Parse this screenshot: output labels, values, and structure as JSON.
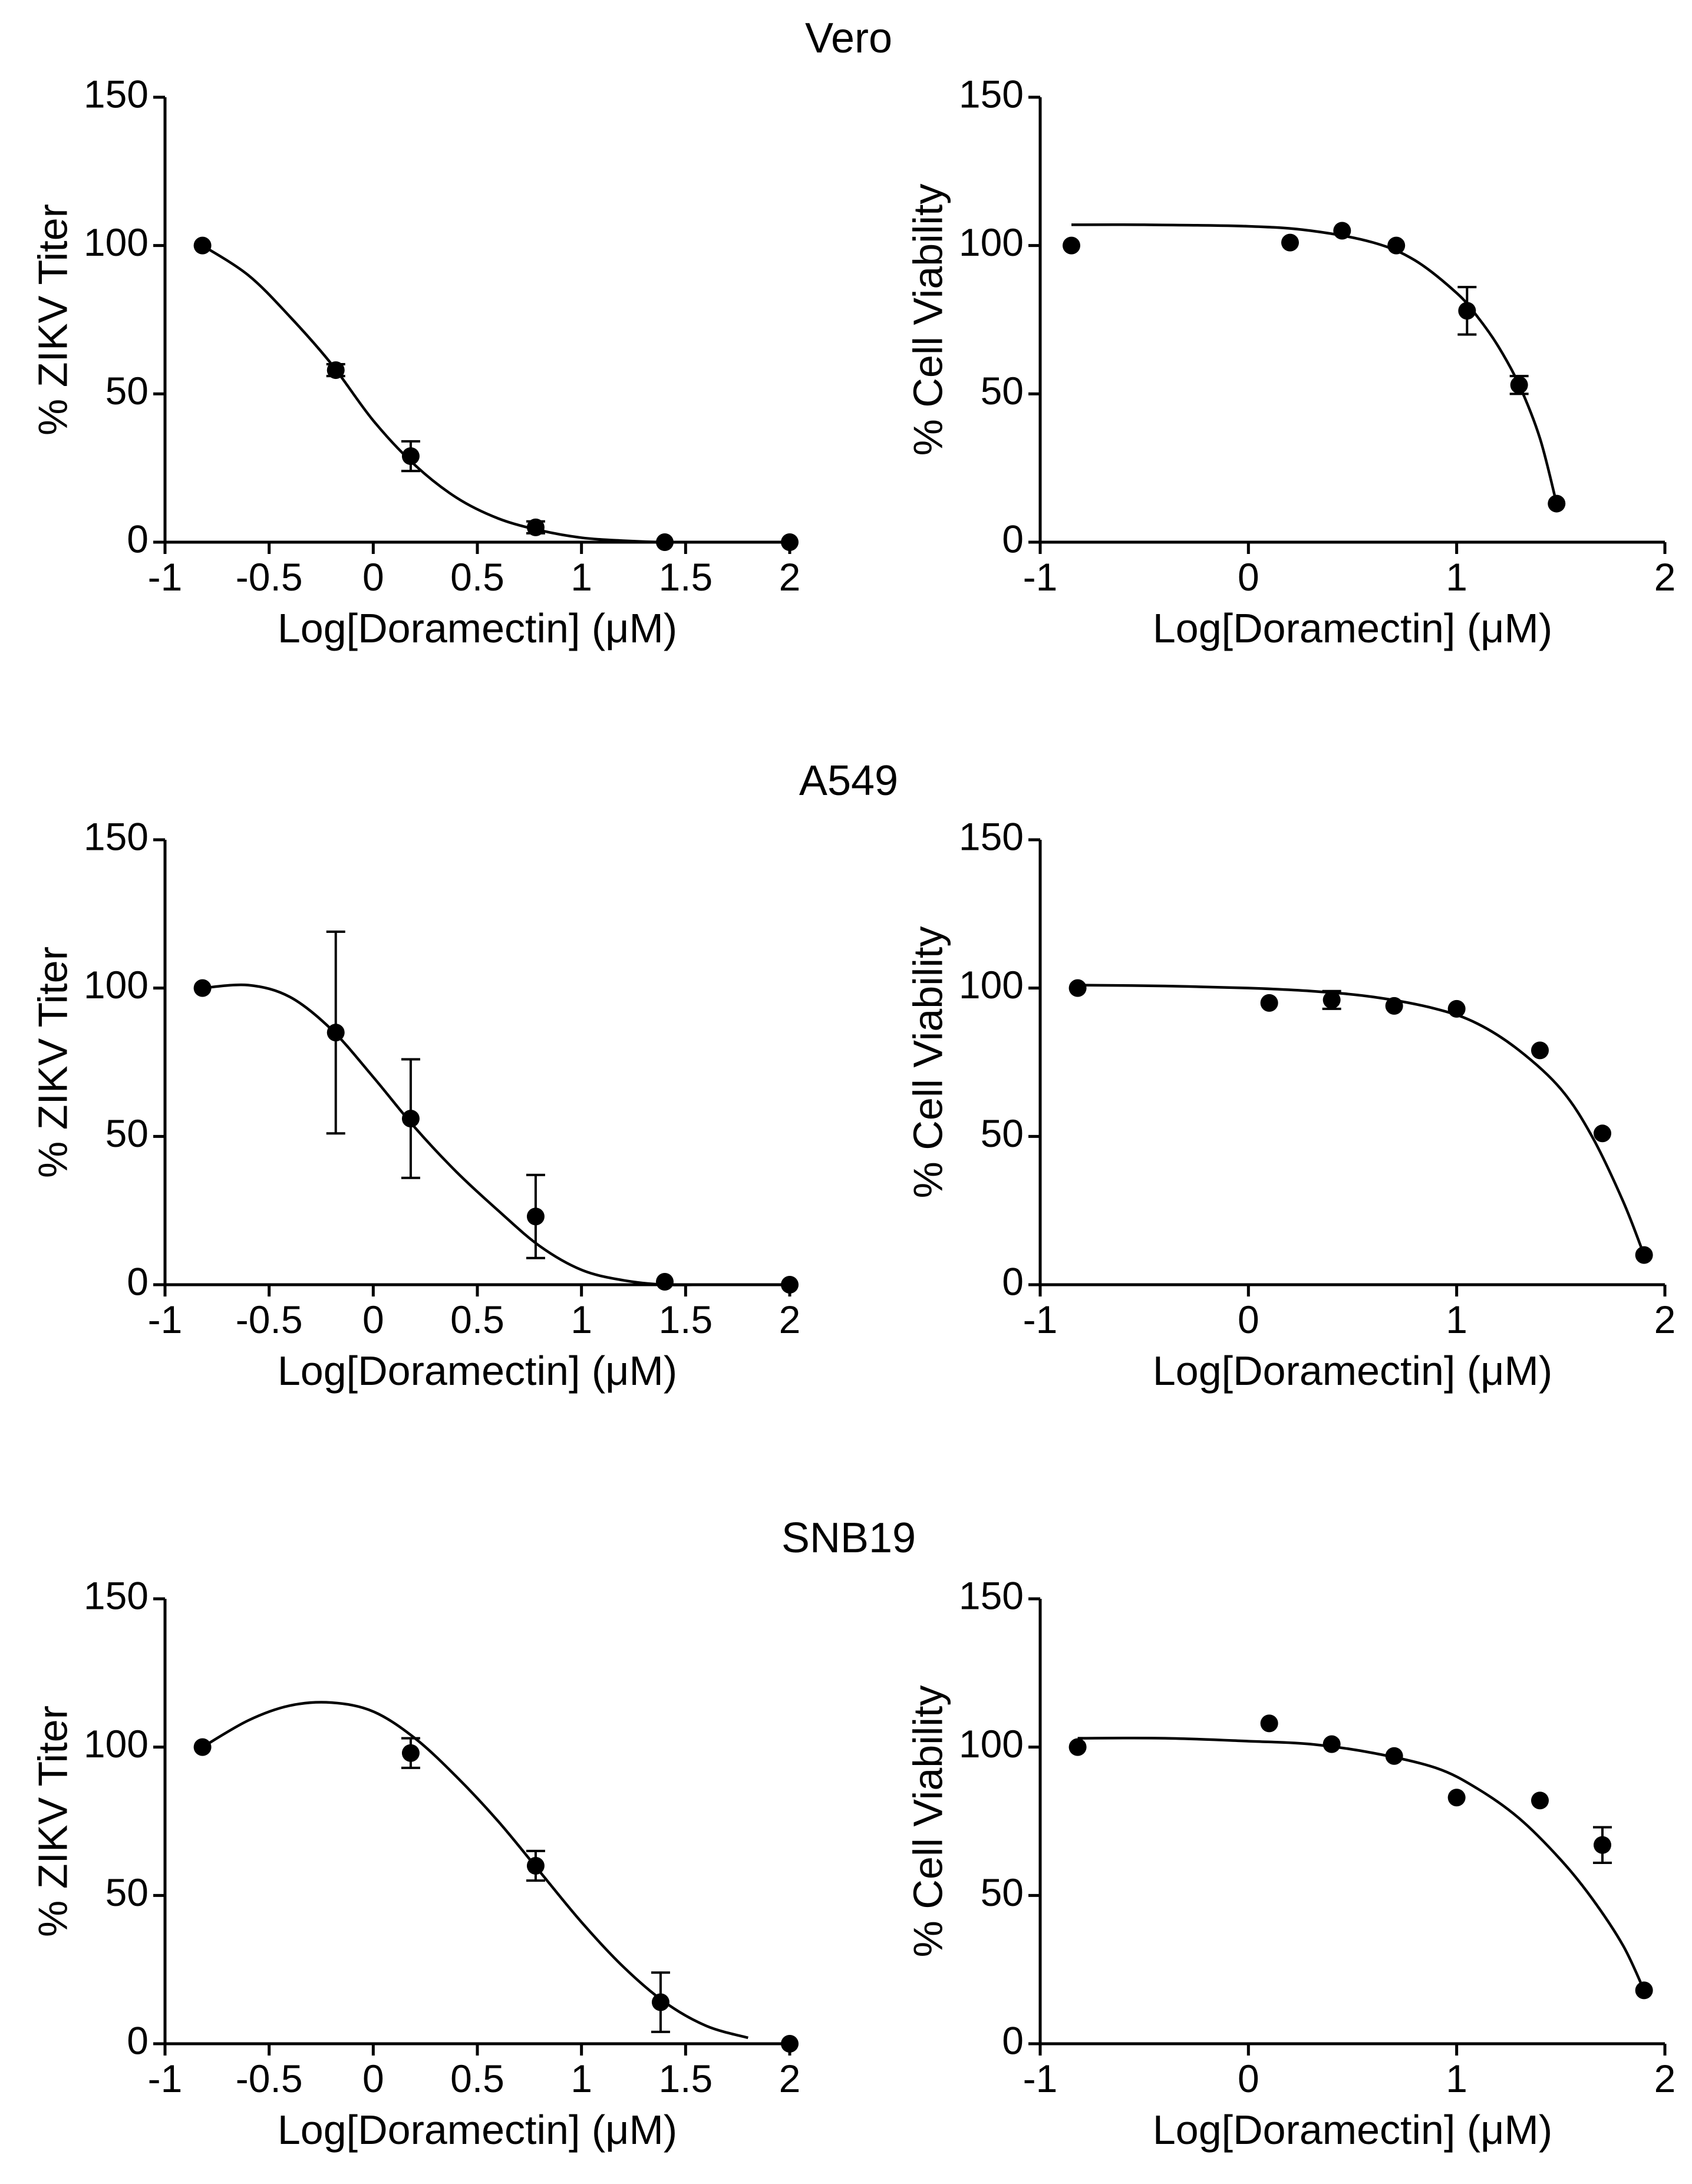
{
  "chart_data": [
    {
      "type": "scatter",
      "panel": "Vero ZIKV titer",
      "row_title": "Vero",
      "title": "",
      "xlabel": "Log[Doramectin] (μM)",
      "ylabel": "% ZIKV Titer",
      "xlim": [
        -1,
        2
      ],
      "ylim": [
        0,
        150
      ],
      "xticks": [
        -1,
        -0.5,
        0,
        0.5,
        1,
        1.5,
        2
      ],
      "xtick_labels": [
        "-1",
        "-0.5",
        "0",
        "0.5",
        "1",
        "1.5",
        "2"
      ],
      "yticks": [
        0,
        50,
        100,
        150
      ],
      "ytick_labels": [
        "0",
        "50",
        "100",
        "150"
      ],
      "points": [
        {
          "x": -0.82,
          "y": 100,
          "err": 0
        },
        {
          "x": -0.18,
          "y": 58,
          "err": 2
        },
        {
          "x": 0.18,
          "y": 29,
          "err": 5
        },
        {
          "x": 0.78,
          "y": 5,
          "err": 2
        },
        {
          "x": 1.4,
          "y": 0,
          "err": 0
        },
        {
          "x": 2.0,
          "y": 0,
          "err": 0
        }
      ],
      "curve": {
        "x": [
          -0.82,
          -0.6,
          -0.4,
          -0.2,
          0,
          0.2,
          0.4,
          0.6,
          0.8,
          1.0,
          1.2,
          1.4,
          1.6,
          2.0
        ],
        "y": [
          100,
          90,
          76,
          60,
          41,
          26,
          15,
          8,
          4,
          1.5,
          0.5,
          0,
          0,
          0
        ]
      }
    },
    {
      "type": "scatter",
      "panel": "Vero cell viability",
      "row_title": "Vero",
      "title": "",
      "xlabel": "Log[Doramectin] (μM)",
      "ylabel": "% Cell Viability",
      "xlim": [
        -1,
        2
      ],
      "ylim": [
        0,
        150
      ],
      "xticks": [
        -1,
        0,
        1,
        2
      ],
      "xtick_labels": [
        "-1",
        "0",
        "1",
        "2"
      ],
      "yticks": [
        0,
        50,
        100,
        150
      ],
      "ytick_labels": [
        "0",
        "50",
        "100",
        "150"
      ],
      "points": [
        {
          "x": -0.85,
          "y": 100,
          "err": 0
        },
        {
          "x": 0.2,
          "y": 101,
          "err": 0
        },
        {
          "x": 0.45,
          "y": 105,
          "err": 0
        },
        {
          "x": 0.71,
          "y": 100,
          "err": 0
        },
        {
          "x": 1.05,
          "y": 78,
          "err": 8
        },
        {
          "x": 1.3,
          "y": 53,
          "err": 3
        },
        {
          "x": 1.48,
          "y": 13,
          "err": 0
        }
      ],
      "curve": {
        "x": [
          -0.85,
          -0.5,
          0,
          0.3,
          0.6,
          0.8,
          1.0,
          1.1,
          1.2,
          1.3,
          1.4,
          1.48
        ],
        "y": [
          107,
          107,
          106.5,
          105,
          101,
          95,
          84,
          76,
          66,
          53,
          35,
          13
        ]
      }
    },
    {
      "type": "scatter",
      "panel": "A549 ZIKV titer",
      "row_title": "A549",
      "title": "",
      "xlabel": "Log[Doramectin] (μM)",
      "ylabel": "% ZIKV Titer",
      "xlim": [
        -1,
        2
      ],
      "ylim": [
        0,
        150
      ],
      "xticks": [
        -1,
        -0.5,
        0,
        0.5,
        1,
        1.5,
        2
      ],
      "xtick_labels": [
        "-1",
        "-0.5",
        "0",
        "0.5",
        "1",
        "1.5",
        "2"
      ],
      "yticks": [
        0,
        50,
        100,
        150
      ],
      "ytick_labels": [
        "0",
        "50",
        "100",
        "150"
      ],
      "points": [
        {
          "x": -0.82,
          "y": 100,
          "err": 0
        },
        {
          "x": -0.18,
          "y": 85,
          "err": 34
        },
        {
          "x": 0.18,
          "y": 56,
          "err": 20
        },
        {
          "x": 0.78,
          "y": 23,
          "err": 14
        },
        {
          "x": 1.4,
          "y": 1,
          "err": 0
        },
        {
          "x": 2.0,
          "y": 0,
          "err": 0
        }
      ],
      "curve": {
        "x": [
          -0.82,
          -0.6,
          -0.4,
          -0.2,
          0,
          0.2,
          0.4,
          0.6,
          0.8,
          1.0,
          1.2,
          1.4,
          1.6,
          2.0
        ],
        "y": [
          100,
          101,
          97,
          86,
          70,
          53,
          38,
          25,
          13,
          5,
          1.5,
          0,
          0,
          0
        ]
      }
    },
    {
      "type": "scatter",
      "panel": "A549 cell viability",
      "row_title": "A549",
      "title": "",
      "xlabel": "Log[Doramectin] (μM)",
      "ylabel": "% Cell Viability",
      "xlim": [
        -1,
        2
      ],
      "ylim": [
        0,
        150
      ],
      "xticks": [
        -1,
        0,
        1,
        2
      ],
      "xtick_labels": [
        "-1",
        "0",
        "1",
        "2"
      ],
      "yticks": [
        0,
        50,
        100,
        150
      ],
      "ytick_labels": [
        "0",
        "50",
        "100",
        "150"
      ],
      "points": [
        {
          "x": -0.82,
          "y": 100,
          "err": 0
        },
        {
          "x": 0.1,
          "y": 95,
          "err": 0
        },
        {
          "x": 0.4,
          "y": 96,
          "err": 3
        },
        {
          "x": 0.7,
          "y": 94,
          "err": 0
        },
        {
          "x": 1.0,
          "y": 93,
          "err": 0
        },
        {
          "x": 1.4,
          "y": 79,
          "err": 0
        },
        {
          "x": 1.7,
          "y": 51,
          "err": 0
        },
        {
          "x": 1.9,
          "y": 10,
          "err": 0
        }
      ],
      "curve": {
        "x": [
          -0.82,
          -0.4,
          0,
          0.3,
          0.6,
          0.9,
          1.1,
          1.3,
          1.5,
          1.65,
          1.8,
          1.9
        ],
        "y": [
          101,
          100.7,
          100,
          99,
          97,
          93,
          88,
          79,
          66,
          50,
          28,
          10
        ]
      }
    },
    {
      "type": "scatter",
      "panel": "SNB19 ZIKV titer",
      "row_title": "SNB19",
      "title": "",
      "xlabel": "Log[Doramectin] (μM)",
      "ylabel": "% ZIKV Titer",
      "xlim": [
        -1,
        2
      ],
      "ylim": [
        0,
        150
      ],
      "xticks": [
        -1,
        -0.5,
        0,
        0.5,
        1,
        1.5,
        2
      ],
      "xtick_labels": [
        "-1",
        "-0.5",
        "0",
        "0.5",
        "1",
        "1.5",
        "2"
      ],
      "yticks": [
        0,
        50,
        100,
        150
      ],
      "ytick_labels": [
        "0",
        "50",
        "100",
        "150"
      ],
      "points": [
        {
          "x": -0.82,
          "y": 100,
          "err": 0
        },
        {
          "x": 0.18,
          "y": 98,
          "err": 5
        },
        {
          "x": 0.78,
          "y": 60,
          "err": 5
        },
        {
          "x": 1.38,
          "y": 14,
          "err": 10
        },
        {
          "x": 2.0,
          "y": 0,
          "err": 0
        }
      ],
      "curve": {
        "x": [
          -0.82,
          -0.6,
          -0.4,
          -0.2,
          0,
          0.2,
          0.4,
          0.6,
          0.8,
          1.0,
          1.2,
          1.4,
          1.6,
          1.8
        ],
        "y": [
          100,
          109,
          114,
          115,
          112,
          103,
          90,
          75,
          58,
          41,
          26,
          14,
          6,
          2
        ]
      }
    },
    {
      "type": "scatter",
      "panel": "SNB19 cell viability",
      "row_title": "SNB19",
      "title": "",
      "xlabel": "Log[Doramectin] (μM)",
      "ylabel": "% Cell Viability",
      "xlim": [
        -1,
        2
      ],
      "ylim": [
        0,
        150
      ],
      "xticks": [
        -1,
        0,
        1,
        2
      ],
      "xtick_labels": [
        "-1",
        "0",
        "1",
        "2"
      ],
      "yticks": [
        0,
        50,
        100,
        150
      ],
      "ytick_labels": [
        "0",
        "50",
        "100",
        "150"
      ],
      "points": [
        {
          "x": -0.82,
          "y": 100,
          "err": 0
        },
        {
          "x": 0.1,
          "y": 108,
          "err": 0
        },
        {
          "x": 0.4,
          "y": 101,
          "err": 0
        },
        {
          "x": 0.7,
          "y": 97,
          "err": 0
        },
        {
          "x": 1.0,
          "y": 83,
          "err": 0
        },
        {
          "x": 1.4,
          "y": 82,
          "err": 0
        },
        {
          "x": 1.7,
          "y": 67,
          "err": 6
        },
        {
          "x": 1.9,
          "y": 18,
          "err": 0
        }
      ],
      "curve": {
        "x": [
          -0.82,
          -0.4,
          0,
          0.3,
          0.6,
          0.9,
          1.1,
          1.3,
          1.5,
          1.65,
          1.8,
          1.9
        ],
        "y": [
          103,
          103,
          102,
          101,
          98,
          93,
          86,
          76,
          62,
          49,
          33,
          18
        ]
      }
    }
  ]
}
